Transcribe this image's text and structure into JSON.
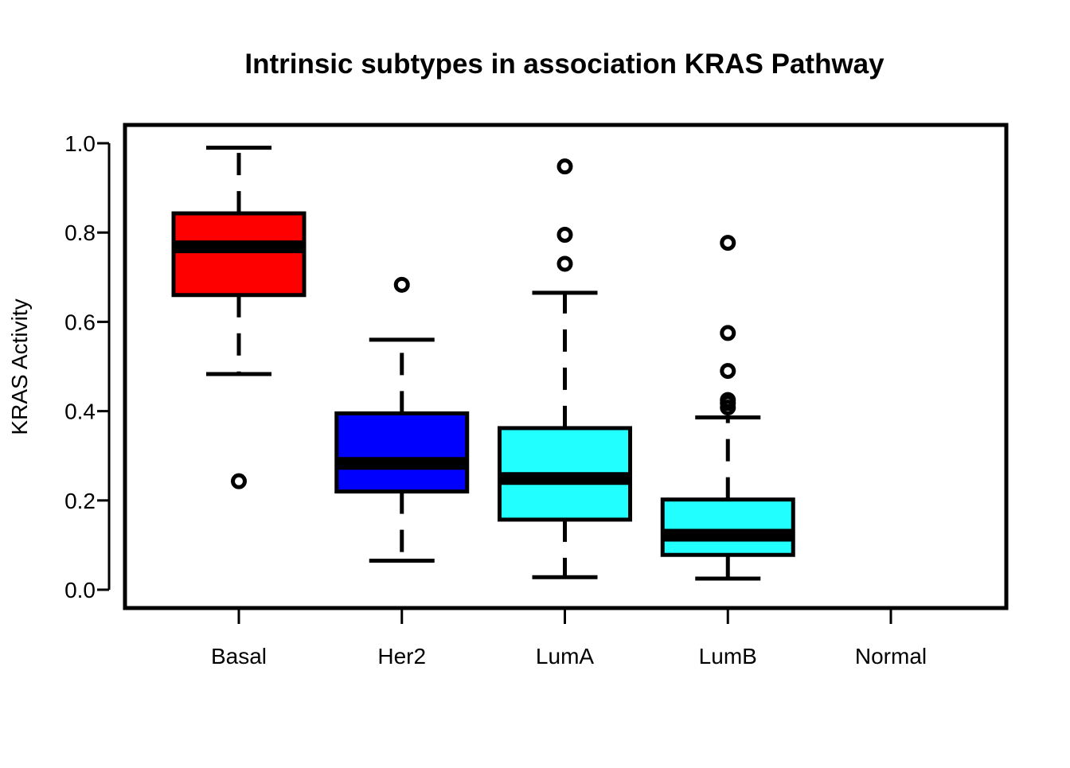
{
  "chart_data": {
    "type": "box",
    "title": "Intrinsic subtypes in association KRAS Pathway",
    "xlabel": "",
    "ylabel": "KRAS Activity",
    "ylim": [
      -0.04,
      1.045
    ],
    "y_ticks": [
      "0.0",
      "0.2",
      "0.4",
      "0.6",
      "0.8",
      "1.0"
    ],
    "y_tick_values": [
      0.0,
      0.2,
      0.4,
      0.6,
      0.8,
      1.0
    ],
    "categories": [
      "Basal",
      "Her2",
      "LumA",
      "LumB",
      "Normal"
    ],
    "grid": false,
    "boxes": [
      {
        "category": "Basal",
        "color": "#ff0000",
        "whisker_low": 0.483,
        "q1": 0.66,
        "median": 0.768,
        "q3": 0.843,
        "whisker_high": 0.99,
        "outliers": [
          0.243
        ]
      },
      {
        "category": "Her2",
        "color": "#0000ff",
        "whisker_low": 0.065,
        "q1": 0.22,
        "median": 0.283,
        "q3": 0.395,
        "whisker_high": 0.56,
        "outliers": [
          0.683
        ]
      },
      {
        "category": "LumA",
        "color": "#22ffff",
        "whisker_low": 0.028,
        "q1": 0.157,
        "median": 0.249,
        "q3": 0.362,
        "whisker_high": 0.665,
        "outliers": [
          0.73,
          0.795,
          0.948
        ]
      },
      {
        "category": "LumB",
        "color": "#22ffff",
        "whisker_low": 0.025,
        "q1": 0.078,
        "median": 0.122,
        "q3": 0.202,
        "whisker_high": 0.386,
        "outliers": [
          0.408,
          0.418,
          0.425,
          0.49,
          0.575,
          0.777
        ]
      },
      {
        "category": "Normal",
        "color": "",
        "whisker_low": null,
        "q1": null,
        "median": null,
        "q3": null,
        "whisker_high": null,
        "outliers": []
      }
    ]
  }
}
